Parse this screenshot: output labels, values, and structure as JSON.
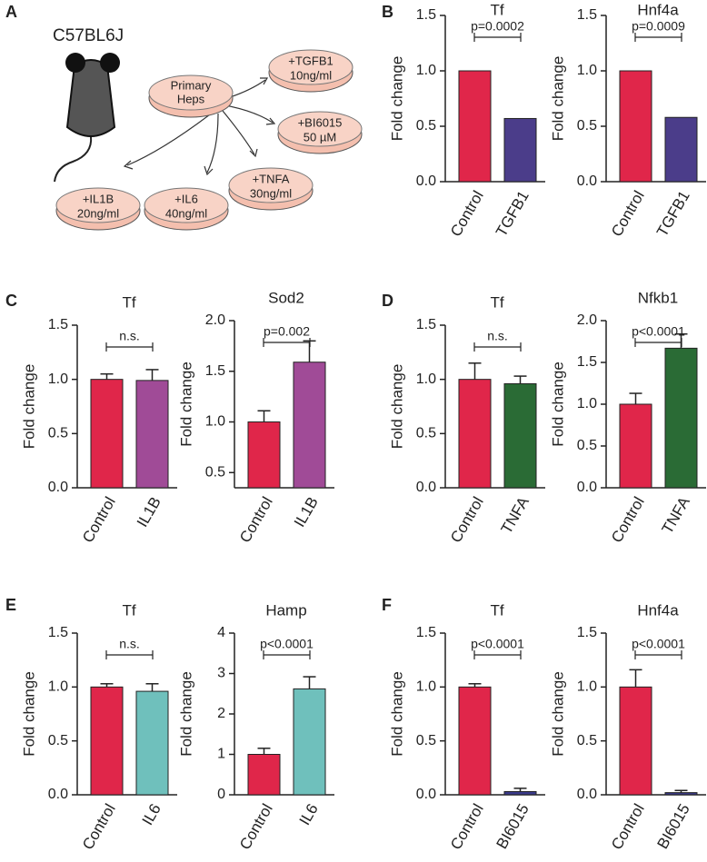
{
  "panel_labels": [
    "A",
    "B",
    "C",
    "D",
    "E",
    "F"
  ],
  "diagram": {
    "strain": "C57BL6J",
    "source": [
      "Primary",
      "Heps"
    ],
    "treatments": [
      [
        "+TGFB1",
        "10ng/ml"
      ],
      [
        "+BI6015",
        "50 µM"
      ],
      [
        "+TNFA",
        "30ng/ml"
      ],
      [
        "+IL6",
        "40ng/ml"
      ],
      [
        "+IL1B",
        "20ng/ml"
      ]
    ]
  },
  "chart_data": [
    {
      "type": "bar",
      "title": "Tf",
      "y_label": "Fold change",
      "categories": [
        "Control",
        "TGFB1"
      ],
      "values": [
        1.0,
        0.57
      ],
      "colors": [
        "#e0264a",
        "#4b3d8a"
      ],
      "annotation": "p=0.0002",
      "ylim": [
        0,
        1.5
      ],
      "yticks": [
        {
          "value": 0,
          "label": "0.0"
        },
        0.5,
        {
          "value": 1,
          "label": "1.0"
        },
        1.5
      ]
    },
    {
      "type": "bar",
      "title": "Hnf4a",
      "y_label": "Fold change",
      "categories": [
        "Control",
        "TGFB1"
      ],
      "values": [
        1.0,
        0.58
      ],
      "colors": [
        "#e0264a",
        "#4b3d8a"
      ],
      "annotation": "p=0.0009",
      "ylim": [
        0,
        1.5
      ],
      "yticks": [
        {
          "value": 0,
          "label": "0.0"
        },
        0.5,
        {
          "value": 1,
          "label": "1.0"
        },
        1.5
      ]
    },
    {
      "type": "bar",
      "title": "Tf",
      "y_label": "Fold change",
      "categories": [
        "Control",
        "IL1B"
      ],
      "values": [
        1.0,
        0.99
      ],
      "errors": [
        0.05,
        0.1
      ],
      "colors": [
        "#e0264a",
        "#a04b97"
      ],
      "annotation": "n.s.",
      "ylim": [
        0,
        1.5
      ],
      "yticks": [
        {
          "value": 0,
          "label": "0.0"
        },
        0.5,
        {
          "value": 1,
          "label": "1.0"
        },
        1.5
      ]
    },
    {
      "type": "bar",
      "title": "Sod2",
      "y_label": "Fold change",
      "categories": [
        "Control",
        "IL1B"
      ],
      "values": [
        1.0,
        1.59
      ],
      "errors": [
        0.11,
        0.21
      ],
      "colors": [
        "#e0264a",
        "#a04b97"
      ],
      "annotation": "p=0.002",
      "ylim": [
        0.35,
        2.0
      ],
      "yticks": [
        0.5,
        {
          "value": 1,
          "label": "1.0"
        },
        1.5,
        {
          "value": 2,
          "label": "2.0"
        }
      ]
    },
    {
      "type": "bar",
      "title": "Tf",
      "y_label": "Fold change",
      "categories": [
        "Control",
        "TNFA"
      ],
      "values": [
        1.0,
        0.96
      ],
      "errors": [
        0.15,
        0.07
      ],
      "colors": [
        "#e0264a",
        "#2a6b35"
      ],
      "annotation": "n.s.",
      "ylim": [
        0,
        1.5
      ],
      "yticks": [
        {
          "value": 0,
          "label": "0.0"
        },
        0.5,
        {
          "value": 1,
          "label": "1.0"
        },
        1.5
      ]
    },
    {
      "type": "bar",
      "title": "Nfkb1",
      "y_label": "Fold change",
      "categories": [
        "Control",
        "TNFA"
      ],
      "values": [
        1.0,
        1.67
      ],
      "errors": [
        0.13,
        0.17
      ],
      "colors": [
        "#e0264a",
        "#2a6b35"
      ],
      "annotation": "p<0.0001",
      "ylim": [
        0,
        2.0
      ],
      "yticks": [
        {
          "value": 0,
          "label": "0.0"
        },
        0.5,
        {
          "value": 1,
          "label": "1.0"
        },
        1.5,
        {
          "value": 2,
          "label": "2.0"
        }
      ]
    },
    {
      "type": "bar",
      "title": "Tf",
      "y_label": "Fold change",
      "categories": [
        "Control",
        "IL6"
      ],
      "values": [
        1.0,
        0.96
      ],
      "errors": [
        0.03,
        0.07
      ],
      "colors": [
        "#e0264a",
        "#6fc0bc"
      ],
      "annotation": "n.s.",
      "ylim": [
        0,
        1.5
      ],
      "yticks": [
        {
          "value": 0,
          "label": "0.0"
        },
        0.5,
        {
          "value": 1,
          "label": "1.0"
        },
        1.5
      ]
    },
    {
      "type": "bar",
      "title": "Hamp",
      "y_label": "Fold change",
      "categories": [
        "Control",
        "IL6"
      ],
      "values": [
        1.0,
        2.62
      ],
      "errors": [
        0.15,
        0.3
      ],
      "colors": [
        "#e0264a",
        "#6fc0bc"
      ],
      "annotation": "p<0.0001",
      "ylim": [
        0,
        4
      ],
      "yticks": [
        0,
        1,
        2,
        3,
        4
      ]
    },
    {
      "type": "bar",
      "title": "Tf",
      "y_label": "Fold change",
      "categories": [
        "Control",
        "BI6015"
      ],
      "values": [
        1.0,
        0.03
      ],
      "errors": [
        0.03,
        0.03
      ],
      "colors": [
        "#e0264a",
        "#3a3a8a"
      ],
      "annotation": "p<0.0001",
      "ylim": [
        0,
        1.5
      ],
      "yticks": [
        {
          "value": 0,
          "label": "0.0"
        },
        0.5,
        {
          "value": 1,
          "label": "1.0"
        },
        1.5
      ]
    },
    {
      "type": "bar",
      "title": "Hnf4a",
      "y_label": "Fold change",
      "categories": [
        "Control",
        "BI6015"
      ],
      "values": [
        1.0,
        0.02
      ],
      "errors": [
        0.16,
        0.02
      ],
      "colors": [
        "#e0264a",
        "#3a3a8a"
      ],
      "annotation": "p<0.0001",
      "ylim": [
        0,
        1.5
      ],
      "yticks": [
        {
          "value": 0,
          "label": "0.0"
        },
        0.5,
        {
          "value": 1,
          "label": "1.0"
        },
        1.5
      ]
    }
  ]
}
